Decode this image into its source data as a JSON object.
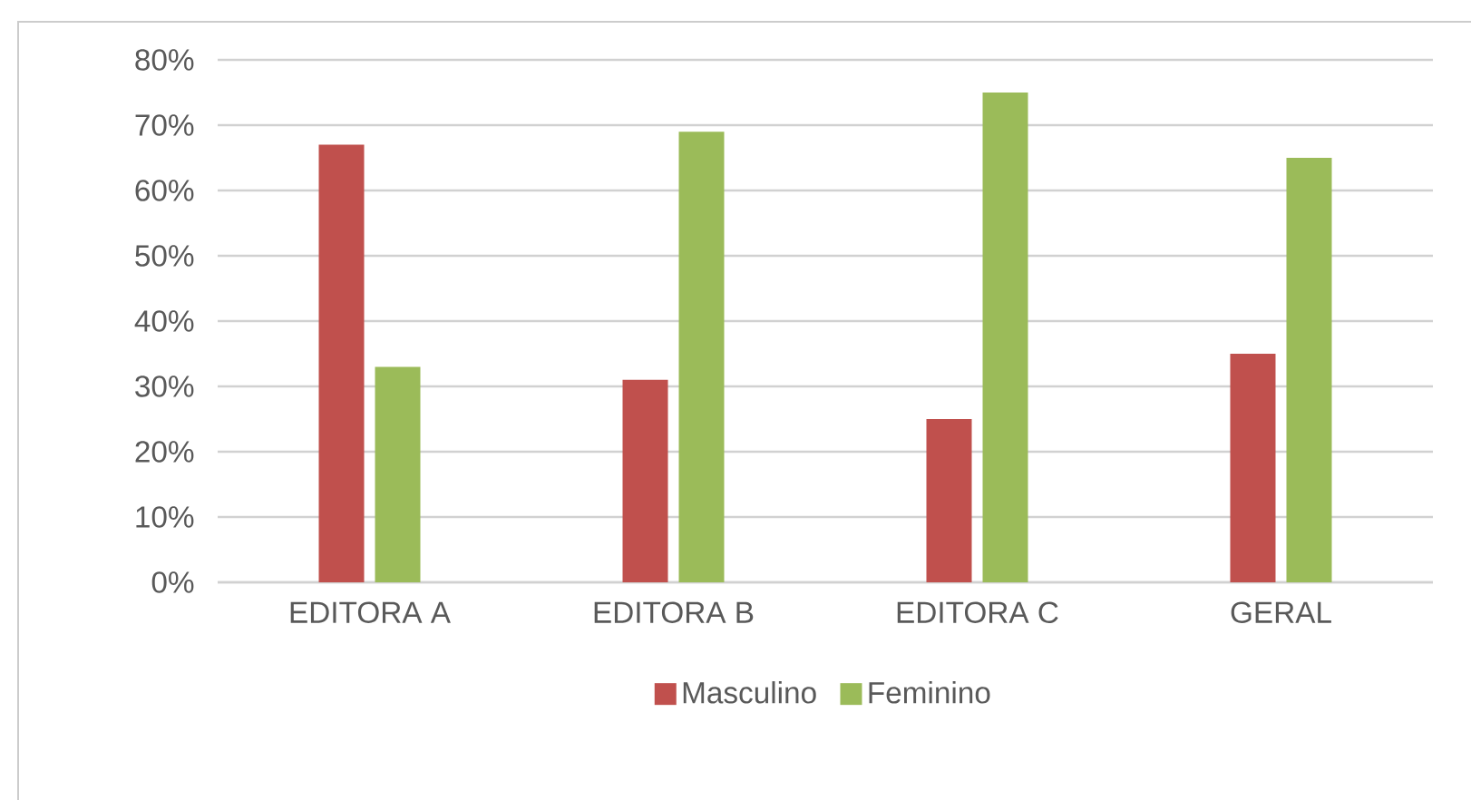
{
  "chart_data": {
    "type": "bar",
    "categories": [
      "EDITORA A",
      "EDITORA B",
      "EDITORA C",
      "GERAL"
    ],
    "series": [
      {
        "name": "Masculino",
        "color": "#c0504d",
        "values": [
          67,
          31,
          25,
          35
        ]
      },
      {
        "name": "Feminino",
        "color": "#9bbb59",
        "values": [
          33,
          69,
          75,
          65
        ]
      }
    ],
    "ylim": [
      0,
      80
    ],
    "yticks": [
      {
        "value": 0,
        "label": "0%"
      },
      {
        "value": 10,
        "label": "10%"
      },
      {
        "value": 20,
        "label": "20%"
      },
      {
        "value": 30,
        "label": "30%"
      },
      {
        "value": 40,
        "label": "40%"
      },
      {
        "value": 50,
        "label": "50%"
      },
      {
        "value": 60,
        "label": "60%"
      },
      {
        "value": 70,
        "label": "70%"
      },
      {
        "value": 80,
        "label": "80%"
      }
    ],
    "grid": "y",
    "legend": "bottom"
  }
}
